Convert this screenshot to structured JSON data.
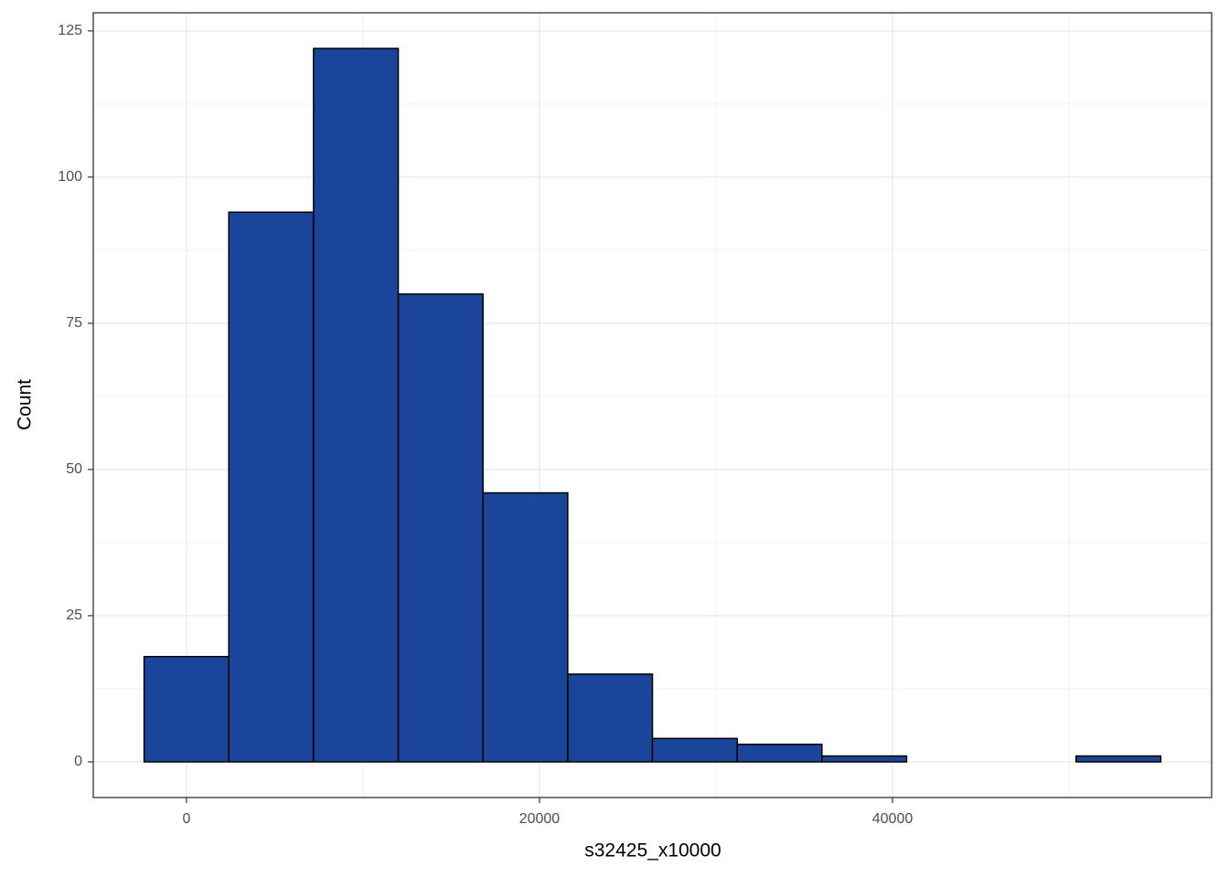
{
  "chart_data": {
    "type": "histogram",
    "x_label": "s32425_x10000",
    "y_label": "Count",
    "bins": [
      -2400,
      2400,
      7200,
      12000,
      16800,
      21600,
      26400,
      31200,
      36000,
      40800,
      45600,
      50400,
      55200
    ],
    "values": [
      18,
      94,
      122,
      80,
      46,
      15,
      4,
      3,
      1,
      0,
      0,
      1
    ],
    "color": "#1a4599",
    "edge_color": "#000000",
    "xlim": [
      -5280,
      58080
    ],
    "ylim": [
      -6.1,
      128.1
    ],
    "xticks": [
      0,
      20000,
      40000
    ],
    "yticks": [
      0,
      25,
      50,
      75,
      100,
      125
    ],
    "x_minor_ticks": [
      10000,
      30000,
      50000
    ],
    "y_minor_ticks": [
      12.5,
      37.5,
      62.5,
      87.5,
      112.5
    ],
    "grid": true
  }
}
